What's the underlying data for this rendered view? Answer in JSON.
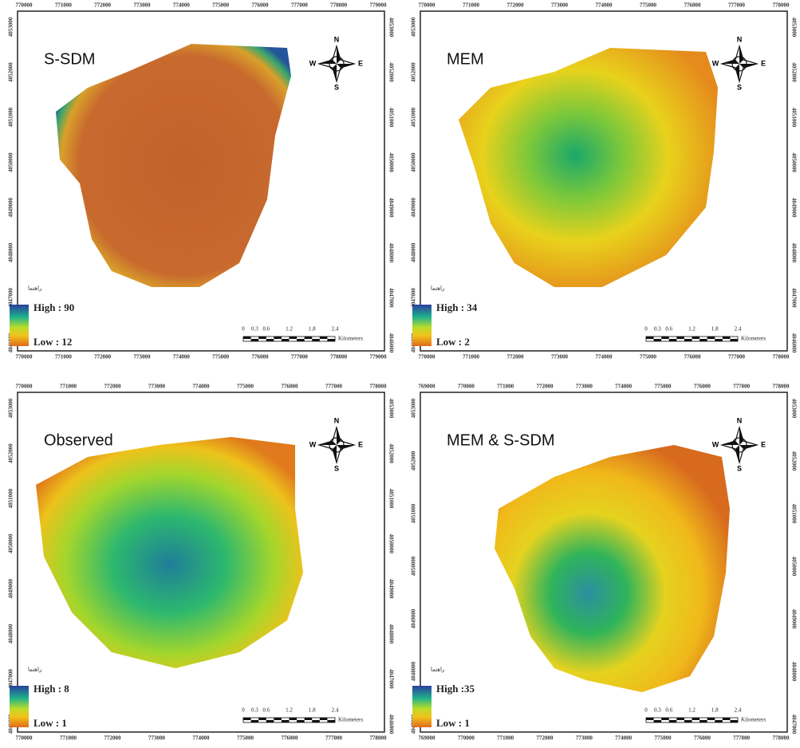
{
  "compass": {
    "n": "N",
    "e": "E",
    "s": "S",
    "w": "W"
  },
  "panels": [
    {
      "title": "S-SDM",
      "legend_title": "راهنما",
      "high": "High : 90",
      "low": "Low : 12",
      "x_ticks": [
        "770000",
        "771000",
        "772000",
        "773000",
        "774000",
        "775000",
        "776000",
        "777000",
        "778000",
        "779000"
      ],
      "y_ticks": [
        "4053000",
        "4052000",
        "4051000",
        "4050000",
        "4049000",
        "4048000",
        "4047000",
        "4046000"
      ],
      "scale": [
        "0",
        "0.3",
        "0.6",
        "1.2",
        "1.8",
        "2.4"
      ],
      "scale_unit": "Kilometers"
    },
    {
      "title": "MEM",
      "legend_title": "راهنما",
      "high": "High : 34",
      "low": "Low : 2",
      "x_ticks": [
        "770000",
        "771000",
        "772000",
        "773000",
        "774000",
        "775000",
        "776000",
        "777000",
        "778000"
      ],
      "y_ticks": [
        "4053000",
        "4052000",
        "4051000",
        "4050000",
        "4049000",
        "4048000",
        "4047000",
        "4046000"
      ],
      "scale": [
        "0",
        "0.3",
        "0.6",
        "1.2",
        "1.8",
        "2.4"
      ],
      "scale_unit": "Kilometers"
    },
    {
      "title": "Observed",
      "legend_title": "راهنما",
      "high": "High : 8",
      "low": "Low : 1",
      "x_ticks": [
        "770000",
        "771000",
        "772000",
        "773000",
        "774000",
        "775000",
        "776000",
        "777000",
        "778000"
      ],
      "y_ticks": [
        "4053000",
        "4052000",
        "4051000",
        "4050000",
        "4049000",
        "4048000",
        "4047000",
        "4046000"
      ],
      "scale": [
        "0",
        "0.3",
        "0.6",
        "1.2",
        "1.8",
        "2.4"
      ],
      "scale_unit": "Kilometers"
    },
    {
      "title": "MEM & S-SDM",
      "legend_title": "راهنما",
      "high": "High :35",
      "low": "Low : 1",
      "x_ticks": [
        "769000",
        "770000",
        "771000",
        "772000",
        "773000",
        "774000",
        "775000",
        "776000",
        "777000",
        "778000"
      ],
      "y_ticks": [
        "4053000",
        "4052000",
        "4051000",
        "4050000",
        "4049000",
        "4048000",
        "4047000"
      ],
      "scale": [
        "0",
        "0.3",
        "0.6",
        "1.2",
        "1.8",
        "2.4"
      ],
      "scale_unit": "Kilometers"
    }
  ]
}
